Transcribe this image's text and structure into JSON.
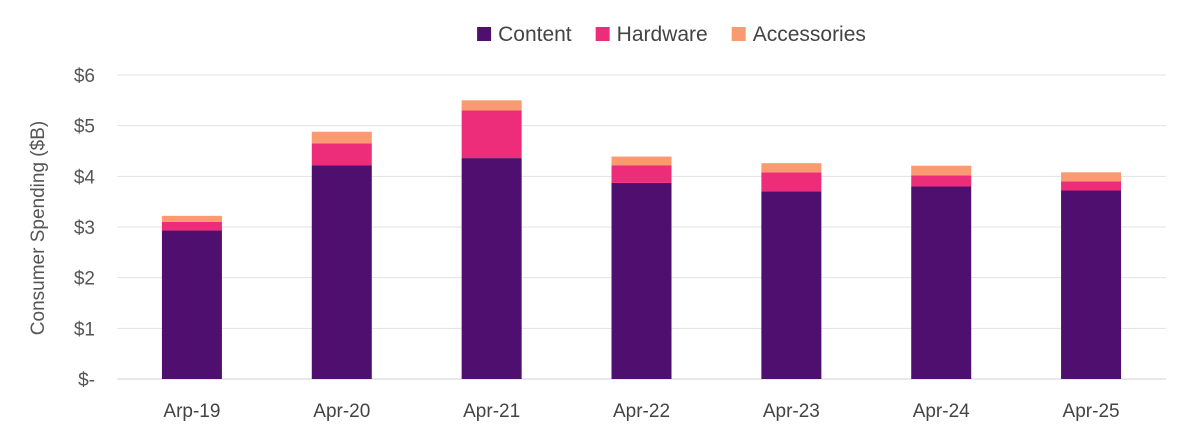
{
  "chart_data": {
    "type": "bar",
    "stacked": true,
    "title": "",
    "xlabel": "",
    "ylabel": "Consumer Spending ($B)",
    "categories": [
      "Arp-19",
      "Apr-20",
      "Apr-21",
      "Apr-22",
      "Apr-23",
      "Apr-24",
      "Apr-25"
    ],
    "series": [
      {
        "name": "Content",
        "color": "#4e0f6e",
        "values": [
          2.93,
          4.22,
          4.36,
          3.87,
          3.7,
          3.8,
          3.72
        ]
      },
      {
        "name": "Hardware",
        "color": "#ee2d7a",
        "values": [
          0.17,
          0.43,
          0.94,
          0.35,
          0.38,
          0.22,
          0.18
        ]
      },
      {
        "name": "Accessories",
        "color": "#f99a70",
        "values": [
          0.12,
          0.23,
          0.2,
          0.17,
          0.18,
          0.19,
          0.18
        ]
      }
    ],
    "ylim": [
      0,
      6
    ],
    "yticks": [
      0,
      1,
      2,
      3,
      4,
      5,
      6
    ],
    "ytick_labels": [
      "$-",
      "$1",
      "$2",
      "$3",
      "$4",
      "$5",
      "$6"
    ],
    "grid": true,
    "legend_position": "top-center"
  }
}
